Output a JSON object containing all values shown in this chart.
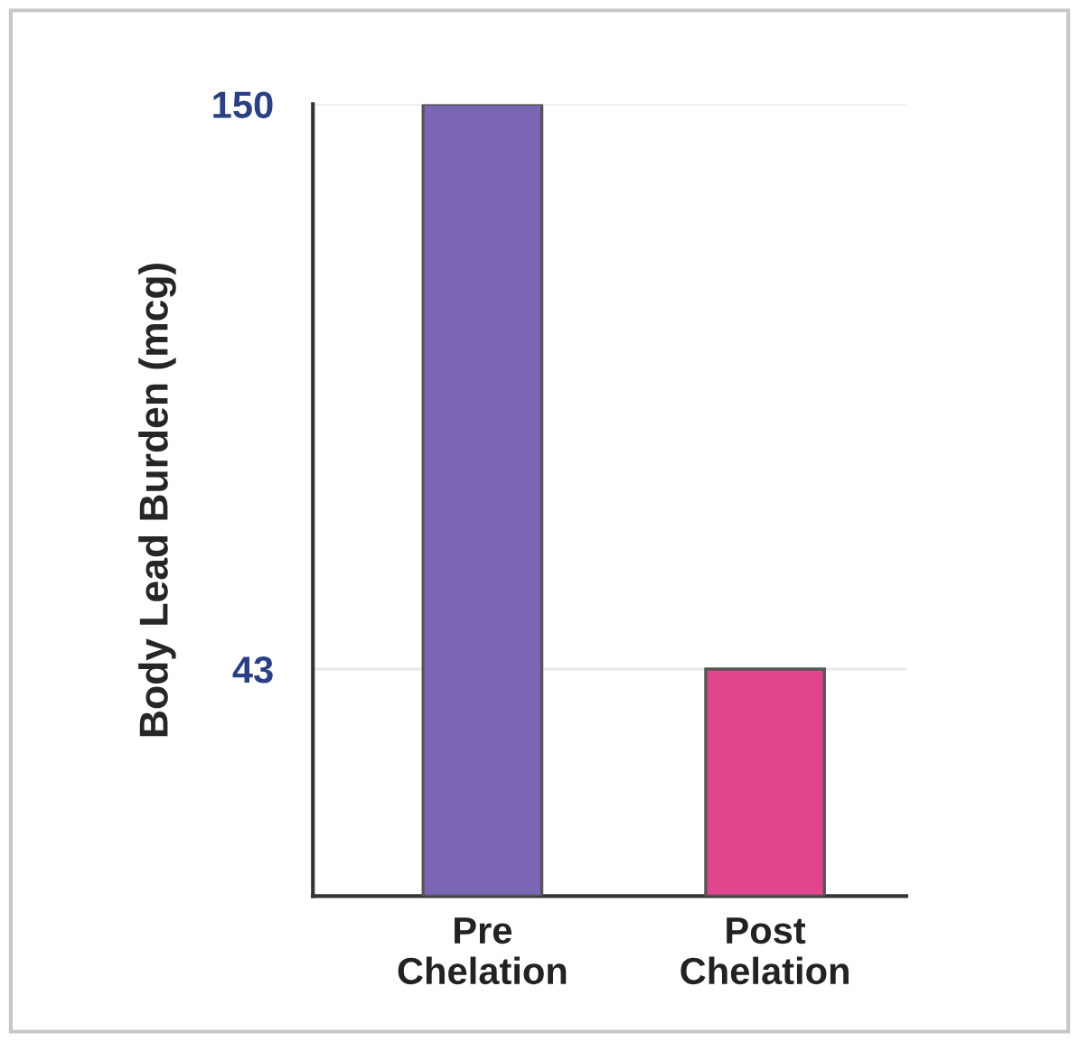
{
  "chart_data": {
    "type": "bar",
    "ylabel": "Body Lead Burden (mcg)",
    "categories": [
      "Pre\nChelation",
      "Post\nChelation"
    ],
    "values": [
      150,
      43
    ],
    "colors": [
      "#7a66b4",
      "#e0468e"
    ],
    "ylim": [
      0,
      150
    ],
    "yticks": [
      150,
      43
    ],
    "grid": "y"
  }
}
